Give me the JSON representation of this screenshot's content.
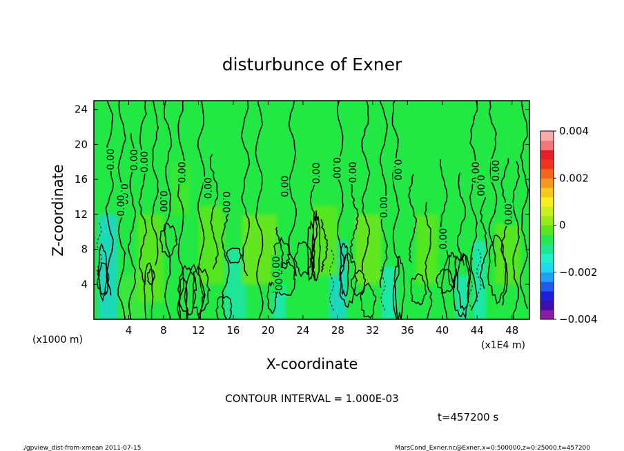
{
  "chart_data": {
    "type": "heatmap",
    "title": "disturbunce of Exner",
    "xlabel": "X-coordinate",
    "ylabel": "Z-coordinate",
    "x_unit_label": "(x1000 m)",
    "x_scale_label": "(x1E4 m)",
    "xlim": [
      0,
      50
    ],
    "ylim": [
      0,
      25
    ],
    "x_ticks": [
      "4",
      "8",
      "12",
      "16",
      "20",
      "24",
      "28",
      "32",
      "36",
      "40",
      "44",
      "48"
    ],
    "y_ticks": [
      "4",
      "8",
      "12",
      "16",
      "20",
      "24"
    ],
    "colorbar": {
      "range": [
        -0.004,
        0.004
      ],
      "tick_labels": [
        "0.004",
        "0.002",
        "0",
        "−0.002",
        "−0.004"
      ],
      "colors": [
        "#8c1aa6",
        "#3d0fb0",
        "#1f1fd8",
        "#1e5cf0",
        "#1fa0f5",
        "#1ed8ee",
        "#1ef0c8",
        "#1ee68c",
        "#2ae650",
        "#5ae61e",
        "#96eb1e",
        "#c8f01e",
        "#f5f01e",
        "#f5c81e",
        "#f5961e",
        "#f5641e",
        "#f0321e",
        "#e61e28",
        "#f07878",
        "#faaaaa"
      ]
    },
    "contour_labels": [
      "0.00",
      "0.00",
      "0.00",
      "0.00",
      "0.00",
      "0.00",
      "0.00",
      "0.00",
      "0.00",
      "0.00",
      "0.00",
      "0.00",
      "0.00",
      "0.00",
      "0.00",
      "0.00",
      "0.00",
      "0.00",
      "0.00",
      "0.00",
      "0.00",
      "0.00"
    ],
    "contour_interval_text": "CONTOUR INTERVAL = 1.000E-03",
    "time_text": "t=457200 s"
  },
  "footer": {
    "left": "./gpview_dist-from-xmean  2011-07-15",
    "right": "MarsCond_Exner.nc@Exner,x=0:500000,z=0:25000,t=457200"
  }
}
